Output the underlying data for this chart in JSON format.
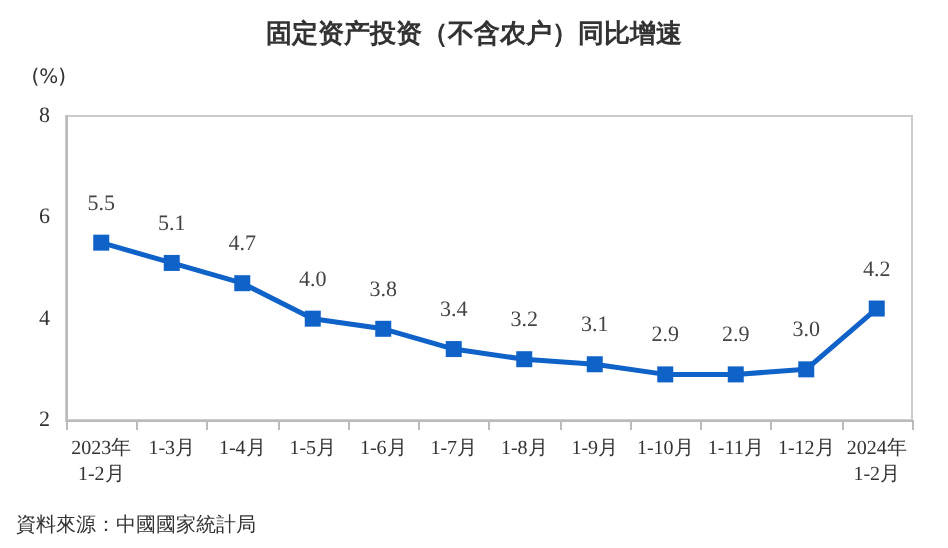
{
  "chart_data": {
    "type": "line",
    "title": "固定资产投资（不含农户）同比增速",
    "ylabel": "(%)",
    "categories": [
      "2023年\n1-2月",
      "1-3月",
      "1-4月",
      "1-5月",
      "1-6月",
      "1-7月",
      "1-8月",
      "1-9月",
      "1-10月",
      "1-11月",
      "1-12月",
      "2024年\n1-2月"
    ],
    "series": [
      {
        "color": "#0e62c8",
        "values": [
          5.5,
          5.1,
          4.7,
          4.0,
          3.8,
          3.4,
          3.2,
          3.1,
          2.9,
          2.9,
          3.0,
          4.2
        ],
        "value_labels": [
          "5.5",
          "5.1",
          "4.7",
          "4.0",
          "3.8",
          "3.4",
          "3.2",
          "3.1",
          "2.9",
          "2.9",
          "3.0",
          "4.2"
        ]
      }
    ],
    "ylim": [
      2,
      8
    ],
    "yticks": [
      2,
      4,
      6,
      8
    ],
    "grid": false,
    "marker": "square",
    "line_style": "solid",
    "annotations": [
      "資料來源：中國國家統計局"
    ]
  }
}
